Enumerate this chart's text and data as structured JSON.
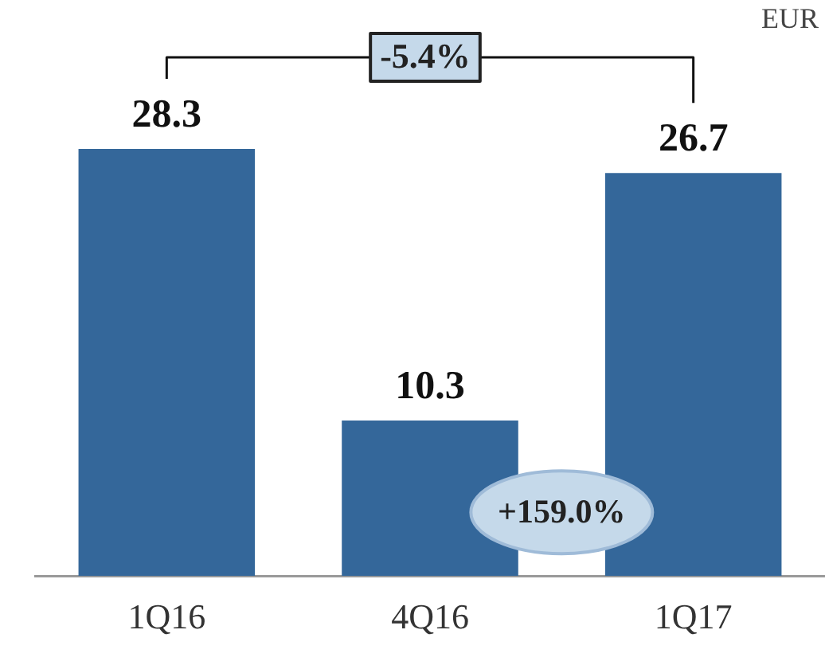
{
  "chart_data": {
    "type": "bar",
    "categories": [
      "1Q16",
      "4Q16",
      "1Q17"
    ],
    "values": [
      28.3,
      10.3,
      26.7
    ],
    "color": "#34679a",
    "tick_labels": "x",
    "data_labels": true,
    "grid": false,
    "legend": false,
    "annotations": [
      "EUR",
      "-5.4%",
      "+159.0%"
    ]
  }
}
